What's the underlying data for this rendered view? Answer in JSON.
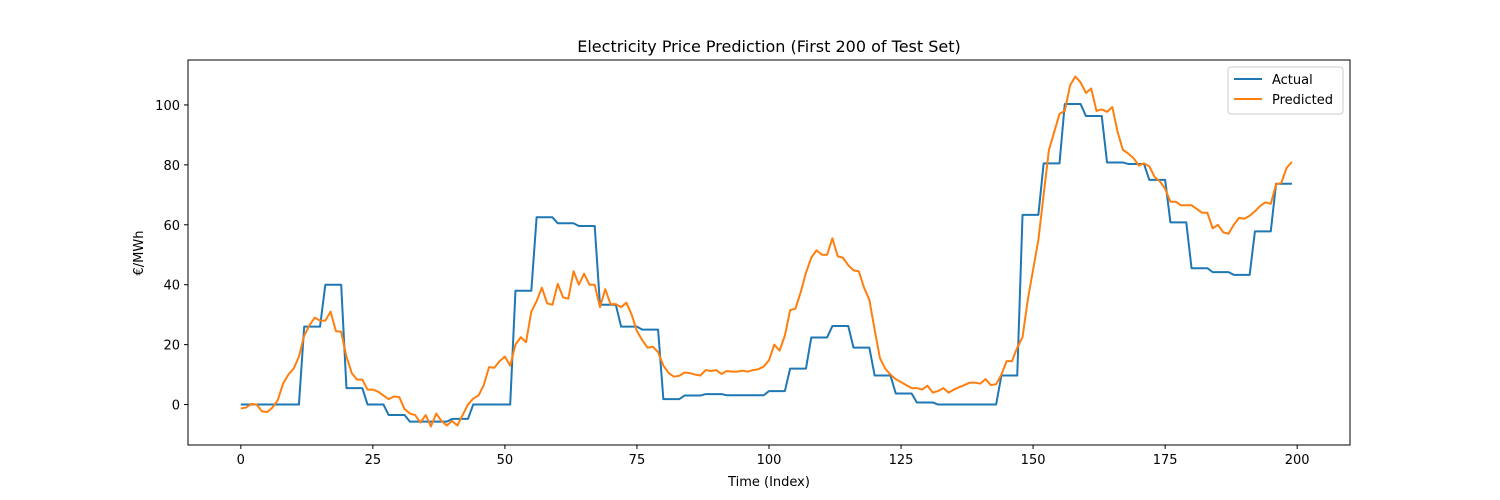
{
  "chart_data": {
    "type": "line",
    "title": "Electricity Price Prediction (First 200 of Test Set)",
    "xlabel": "Time (Index)",
    "ylabel": "€/MWh",
    "xlim": [
      -10,
      210
    ],
    "ylim": [
      -13.5,
      115
    ],
    "xticks": [
      0,
      25,
      50,
      75,
      100,
      125,
      150,
      175,
      200
    ],
    "yticks": [
      0,
      20,
      40,
      60,
      80,
      100
    ],
    "grid": false,
    "legend": "top-right",
    "series": [
      {
        "name": "Actual",
        "color": "#1f77b4",
        "points": [
          [
            0,
            0
          ],
          [
            11,
            0
          ],
          [
            12,
            26
          ],
          [
            15,
            26
          ],
          [
            16,
            40
          ],
          [
            19,
            40
          ],
          [
            20,
            5.5
          ],
          [
            23,
            5.5
          ],
          [
            24,
            0
          ],
          [
            27,
            0
          ],
          [
            28,
            -3.5
          ],
          [
            31,
            -3.5
          ],
          [
            32,
            -5.7
          ],
          [
            39,
            -5.7
          ],
          [
            40,
            -4.8
          ],
          [
            43,
            -4.8
          ],
          [
            44,
            0
          ],
          [
            51,
            0
          ],
          [
            52,
            38
          ],
          [
            55,
            38
          ],
          [
            56,
            62.5
          ],
          [
            59,
            62.5
          ],
          [
            60,
            60.5
          ],
          [
            63,
            60.5
          ],
          [
            64,
            59.6
          ],
          [
            67,
            59.6
          ],
          [
            68,
            33.3
          ],
          [
            71,
            33.3
          ],
          [
            72,
            26
          ],
          [
            75,
            26
          ],
          [
            76,
            25
          ],
          [
            79,
            25
          ],
          [
            80,
            1.8
          ],
          [
            83,
            1.8
          ],
          [
            84,
            3
          ],
          [
            87,
            3
          ],
          [
            88,
            3.5
          ],
          [
            91,
            3.5
          ],
          [
            92,
            3.1
          ],
          [
            99,
            3.1
          ],
          [
            100,
            4.5
          ],
          [
            103,
            4.5
          ],
          [
            104,
            12
          ],
          [
            107,
            12
          ],
          [
            108,
            22.4
          ],
          [
            111,
            22.4
          ],
          [
            112,
            26.2
          ],
          [
            115,
            26.2
          ],
          [
            116,
            19
          ],
          [
            119,
            19
          ],
          [
            120,
            9.7
          ],
          [
            123,
            9.7
          ],
          [
            124,
            3.7
          ],
          [
            127,
            3.7
          ],
          [
            128,
            0.7
          ],
          [
            131,
            0.7
          ],
          [
            132,
            0
          ],
          [
            143,
            0
          ],
          [
            144,
            9.7
          ],
          [
            147,
            9.7
          ],
          [
            148,
            63.3
          ],
          [
            151,
            63.3
          ],
          [
            152,
            80.5
          ],
          [
            155,
            80.5
          ],
          [
            156,
            100.3
          ],
          [
            159,
            100.3
          ],
          [
            160,
            96.3
          ],
          [
            163,
            96.3
          ],
          [
            164,
            80.8
          ],
          [
            167,
            80.8
          ],
          [
            168,
            80.3
          ],
          [
            171,
            80.3
          ],
          [
            172,
            75
          ],
          [
            175,
            75
          ],
          [
            176,
            60.8
          ],
          [
            179,
            60.8
          ],
          [
            180,
            45.5
          ],
          [
            183,
            45.5
          ],
          [
            184,
            44.2
          ],
          [
            187,
            44.2
          ],
          [
            188,
            43.3
          ],
          [
            191,
            43.3
          ],
          [
            192,
            57.8
          ],
          [
            195,
            57.8
          ],
          [
            196,
            73.7
          ],
          [
            199,
            73.7
          ]
        ]
      },
      {
        "name": "Predicted",
        "color": "#ff7f0e",
        "points": [
          [
            0,
            -1.3
          ],
          [
            1,
            -1
          ],
          [
            2,
            0.2
          ],
          [
            3,
            0
          ],
          [
            4,
            -2.3
          ],
          [
            5,
            -2.5
          ],
          [
            6,
            -1
          ],
          [
            7,
            1.5
          ],
          [
            8,
            7
          ],
          [
            9,
            10
          ],
          [
            10,
            12
          ],
          [
            11,
            16
          ],
          [
            12,
            23
          ],
          [
            13,
            26.5
          ],
          [
            14,
            29
          ],
          [
            15,
            28
          ],
          [
            16,
            28
          ],
          [
            17,
            31
          ],
          [
            18,
            24.5
          ],
          [
            19,
            24.3
          ],
          [
            20,
            16
          ],
          [
            21,
            10.5
          ],
          [
            22,
            8.3
          ],
          [
            23,
            8.3
          ],
          [
            24,
            5
          ],
          [
            25,
            5
          ],
          [
            26,
            4.3
          ],
          [
            27,
            3
          ],
          [
            28,
            1.8
          ],
          [
            29,
            2.7
          ],
          [
            30,
            2.5
          ],
          [
            31,
            -1.5
          ],
          [
            32,
            -3
          ],
          [
            33,
            -3.5
          ],
          [
            34,
            -6
          ],
          [
            35,
            -3.5
          ],
          [
            36,
            -7.3
          ],
          [
            37,
            -3
          ],
          [
            38,
            -5.5
          ],
          [
            39,
            -7
          ],
          [
            40,
            -5.5
          ],
          [
            41,
            -7
          ],
          [
            42,
            -3.5
          ],
          [
            43,
            0
          ],
          [
            44,
            2
          ],
          [
            45,
            3
          ],
          [
            46,
            6.5
          ],
          [
            47,
            12.5
          ],
          [
            48,
            12.3
          ],
          [
            49,
            14.5
          ],
          [
            50,
            16
          ],
          [
            51,
            13
          ],
          [
            52,
            20
          ],
          [
            53,
            22.5
          ],
          [
            54,
            20.8
          ],
          [
            55,
            31
          ],
          [
            56,
            34.5
          ],
          [
            57,
            39
          ],
          [
            58,
            33.8
          ],
          [
            59,
            33.3
          ],
          [
            60,
            40.3
          ],
          [
            61,
            35.8
          ],
          [
            62,
            35.3
          ],
          [
            63,
            44.5
          ],
          [
            64,
            40
          ],
          [
            65,
            43.7
          ],
          [
            66,
            40
          ],
          [
            67,
            40
          ],
          [
            68,
            32.5
          ],
          [
            69,
            38.5
          ],
          [
            70,
            33.5
          ],
          [
            71,
            33.5
          ],
          [
            72,
            32.5
          ],
          [
            73,
            34
          ],
          [
            74,
            30
          ],
          [
            75,
            24.5
          ],
          [
            76,
            21.5
          ],
          [
            77,
            19
          ],
          [
            78,
            19.3
          ],
          [
            79,
            17.5
          ],
          [
            80,
            13
          ],
          [
            81,
            10.5
          ],
          [
            82,
            9.3
          ],
          [
            83,
            9.6
          ],
          [
            84,
            10.7
          ],
          [
            85,
            10.5
          ],
          [
            86,
            10
          ],
          [
            87,
            9.7
          ],
          [
            88,
            11.5
          ],
          [
            89,
            11.2
          ],
          [
            90,
            11.5
          ],
          [
            91,
            10.2
          ],
          [
            92,
            11.2
          ],
          [
            93,
            11
          ],
          [
            94,
            11
          ],
          [
            95,
            11.3
          ],
          [
            96,
            11
          ],
          [
            97,
            11.5
          ],
          [
            98,
            11.8
          ],
          [
            99,
            12.7
          ],
          [
            100,
            14.8
          ],
          [
            101,
            20
          ],
          [
            102,
            18
          ],
          [
            103,
            23
          ],
          [
            104,
            31.5
          ],
          [
            105,
            32
          ],
          [
            106,
            37.5
          ],
          [
            107,
            44
          ],
          [
            108,
            49
          ],
          [
            109,
            51.5
          ],
          [
            110,
            50
          ],
          [
            111,
            50
          ],
          [
            112,
            55.5
          ],
          [
            113,
            49.5
          ],
          [
            114,
            49
          ],
          [
            115,
            46.5
          ],
          [
            116,
            44.8
          ],
          [
            117,
            44.5
          ],
          [
            118,
            39
          ],
          [
            119,
            35
          ],
          [
            120,
            25
          ],
          [
            121,
            15.5
          ],
          [
            122,
            12
          ],
          [
            123,
            10
          ],
          [
            124,
            8.5
          ],
          [
            125,
            7.5
          ],
          [
            126,
            6.5
          ],
          [
            127,
            5.5
          ],
          [
            128,
            5.5
          ],
          [
            129,
            5
          ],
          [
            130,
            6.3
          ],
          [
            131,
            4
          ],
          [
            132,
            4.5
          ],
          [
            133,
            5.5
          ],
          [
            134,
            4
          ],
          [
            135,
            5
          ],
          [
            136,
            5.8
          ],
          [
            137,
            6.5
          ],
          [
            138,
            7.3
          ],
          [
            139,
            7.3
          ],
          [
            140,
            7
          ],
          [
            141,
            8.5
          ],
          [
            142,
            6.5
          ],
          [
            143,
            6.8
          ],
          [
            144,
            10
          ],
          [
            145,
            14.5
          ],
          [
            146,
            14.5
          ],
          [
            147,
            19
          ],
          [
            148,
            22.5
          ],
          [
            149,
            35
          ],
          [
            150,
            45
          ],
          [
            151,
            55
          ],
          [
            152,
            70
          ],
          [
            153,
            85
          ],
          [
            154,
            91
          ],
          [
            155,
            97
          ],
          [
            156,
            98
          ],
          [
            157,
            106.5
          ],
          [
            158,
            109.5
          ],
          [
            159,
            107.5
          ],
          [
            160,
            104
          ],
          [
            161,
            105.5
          ],
          [
            162,
            98
          ],
          [
            163,
            98.5
          ],
          [
            164,
            97.7
          ],
          [
            165,
            99.3
          ],
          [
            166,
            91
          ],
          [
            167,
            85
          ],
          [
            168,
            83.8
          ],
          [
            169,
            82.3
          ],
          [
            170,
            79.8
          ],
          [
            171,
            80.5
          ],
          [
            172,
            79.5
          ],
          [
            173,
            76
          ],
          [
            174,
            74.5
          ],
          [
            175,
            72
          ],
          [
            176,
            67.7
          ],
          [
            177,
            67.7
          ],
          [
            178,
            66.5
          ],
          [
            179,
            66.5
          ],
          [
            180,
            66.5
          ],
          [
            181,
            65.3
          ],
          [
            182,
            64
          ],
          [
            183,
            64
          ],
          [
            184,
            58.8
          ],
          [
            185,
            60
          ],
          [
            186,
            57.5
          ],
          [
            187,
            57
          ],
          [
            188,
            60
          ],
          [
            189,
            62.3
          ],
          [
            190,
            62
          ],
          [
            191,
            63
          ],
          [
            192,
            64.5
          ],
          [
            193,
            66.3
          ],
          [
            194,
            67.5
          ],
          [
            195,
            67
          ],
          [
            196,
            73.5
          ],
          [
            197,
            74
          ],
          [
            198,
            79
          ],
          [
            199,
            81
          ]
        ]
      }
    ]
  }
}
